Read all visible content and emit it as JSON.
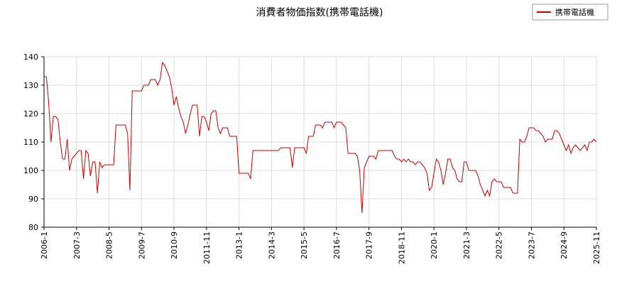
{
  "chart_data": {
    "type": "line",
    "title": "消費者物価指数(携帯電話機)",
    "categories": [
      "2006-1",
      null,
      null,
      null,
      null,
      null,
      null,
      null,
      null,
      null,
      null,
      null,
      null,
      null,
      "2007-3",
      null,
      null,
      null,
      null,
      null,
      null,
      null,
      null,
      null,
      null,
      null,
      null,
      null,
      "2008-5",
      null,
      null,
      null,
      null,
      null,
      null,
      null,
      null,
      null,
      null,
      null,
      null,
      null,
      "2009-7",
      null,
      null,
      null,
      null,
      null,
      null,
      null,
      null,
      null,
      null,
      null,
      null,
      null,
      "2010-9",
      null,
      null,
      null,
      null,
      null,
      null,
      null,
      null,
      null,
      null,
      null,
      null,
      null,
      "2011-11",
      null,
      null,
      null,
      null,
      null,
      null,
      null,
      null,
      null,
      null,
      null,
      null,
      null,
      "2013-1",
      null,
      null,
      null,
      null,
      null,
      null,
      null,
      null,
      null,
      null,
      null,
      null,
      null,
      "2014-3",
      null,
      null,
      null,
      null,
      null,
      null,
      null,
      null,
      null,
      null,
      null,
      null,
      null,
      "2015-5",
      null,
      null,
      null,
      null,
      null,
      null,
      null,
      null,
      null,
      null,
      null,
      null,
      null,
      "2016-7",
      null,
      null,
      null,
      null,
      null,
      null,
      null,
      null,
      null,
      null,
      null,
      null,
      null,
      "2017-9",
      null,
      null,
      null,
      null,
      null,
      null,
      null,
      null,
      null,
      null,
      null,
      null,
      null,
      "2018-11",
      null,
      null,
      null,
      null,
      null,
      null,
      null,
      null,
      null,
      null,
      null,
      null,
      null,
      "2020-1",
      null,
      null,
      null,
      null,
      null,
      null,
      null,
      null,
      null,
      null,
      null,
      null,
      null,
      "2021-3",
      null,
      null,
      null,
      null,
      null,
      null,
      null,
      null,
      null,
      null,
      null,
      null,
      null,
      "2022-5",
      null,
      null,
      null,
      null,
      null,
      null,
      null,
      null,
      null,
      null,
      null,
      null,
      null,
      "2023-7",
      null,
      null,
      null,
      null,
      null,
      null,
      null,
      null,
      null,
      null,
      null,
      null,
      null,
      "2024-9",
      null,
      null,
      null,
      null,
      null,
      null,
      null,
      null,
      null,
      null,
      null,
      null,
      null,
      "2025-11"
    ],
    "series": [
      {
        "name": "携帯電話機",
        "color": "#cc0000",
        "values": [
          133,
          133,
          124,
          110,
          119,
          119,
          118,
          110,
          104,
          104,
          111,
          100,
          104,
          105,
          106,
          107,
          107,
          97,
          107,
          106,
          98,
          103,
          103,
          92,
          103,
          101,
          102,
          102,
          102,
          102,
          102,
          116,
          116,
          116,
          116,
          116,
          113,
          93,
          128,
          128,
          128,
          128,
          128,
          130,
          130,
          130,
          132,
          132,
          132,
          130,
          132,
          138,
          137,
          135,
          133,
          129,
          123,
          126,
          122,
          119,
          117,
          113,
          116,
          120,
          123,
          123,
          123,
          112,
          119,
          119,
          117,
          114,
          120,
          121,
          121,
          115,
          113,
          115,
          115,
          115,
          112,
          112,
          112,
          112,
          99,
          99,
          99,
          99,
          99,
          97,
          107,
          107,
          107,
          107,
          107,
          107,
          107,
          107,
          107,
          107,
          107,
          107,
          108,
          108,
          108,
          108,
          108,
          101,
          108,
          108,
          108,
          108,
          108,
          106,
          112,
          112,
          112,
          116,
          116,
          116,
          115,
          117,
          117,
          117,
          117,
          115,
          117,
          117,
          117,
          116,
          115,
          106,
          106,
          106,
          106,
          105,
          100,
          85,
          101,
          103,
          105,
          105,
          105,
          104,
          107,
          107,
          107,
          107,
          107,
          107,
          107,
          105,
          104,
          104,
          103,
          104,
          103,
          104,
          103,
          103,
          102,
          103,
          103,
          102,
          101,
          99,
          93,
          94,
          99,
          104,
          103,
          100,
          95,
          99,
          104,
          104,
          101,
          100,
          97,
          96,
          96,
          103,
          103,
          100,
          100,
          100,
          100,
          98,
          95,
          93,
          91,
          93,
          91,
          96,
          97,
          96,
          96,
          96,
          94,
          94,
          94,
          94,
          92,
          92,
          92,
          111,
          110,
          110,
          112,
          115,
          115,
          115,
          114,
          114,
          113,
          112,
          110,
          111,
          111,
          111,
          114,
          114,
          113,
          111,
          109,
          107,
          109,
          106,
          108,
          109,
          108,
          107,
          108,
          109,
          107,
          110,
          110,
          111,
          110
        ]
      }
    ],
    "ylim": [
      80,
      140
    ],
    "yticks": [
      80,
      90,
      100,
      110,
      120,
      130,
      140
    ],
    "grid": true,
    "legend": "upper right"
  }
}
